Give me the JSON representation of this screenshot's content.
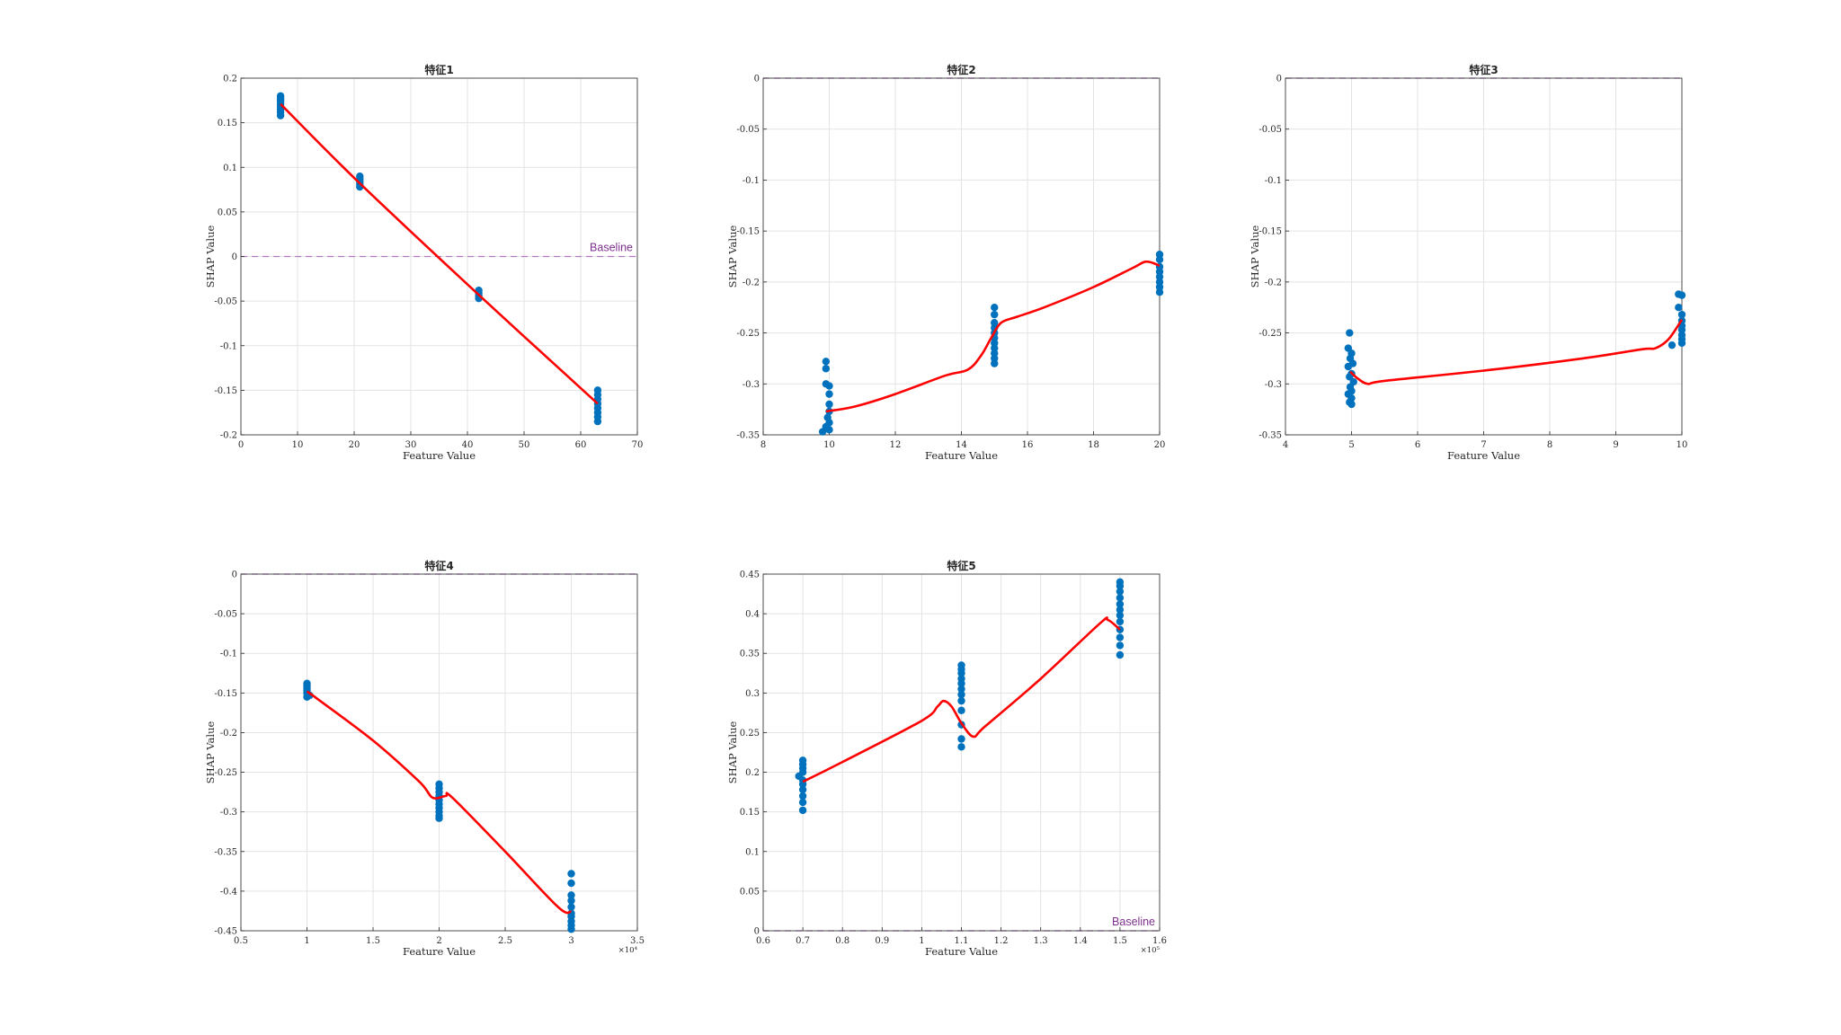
{
  "colors": {
    "points": "#0072bd",
    "trend": "#ff0000",
    "baseline": "#b57bc0",
    "baseline_text": "#7e2f8e",
    "grid": "#e3e3e3",
    "axes": "#262626"
  },
  "chart_data": [
    {
      "type": "scatter",
      "title": "特征1",
      "xlabel": "Feature Value",
      "ylabel": "SHAP Value",
      "xlim": [
        0,
        70
      ],
      "ylim": [
        -0.2,
        0.2
      ],
      "xticks": [
        0,
        10,
        20,
        30,
        40,
        50,
        60,
        70
      ],
      "xtick_labels": [
        "0",
        "10",
        "20",
        "30",
        "40",
        "50",
        "60",
        "70"
      ],
      "yticks": [
        -0.2,
        -0.15,
        -0.1,
        -0.05,
        0,
        0.05,
        0.1,
        0.15,
        0.2
      ],
      "ytick_labels": [
        "-0.2",
        "-0.15",
        "-0.1",
        "-0.05",
        "0",
        "0.05",
        "0.1",
        "0.15",
        "0.2"
      ],
      "exponent": "",
      "grid": true,
      "baseline": {
        "y": 0,
        "label": "Baseline",
        "label_position": "top-right"
      },
      "points": [
        [
          7,
          0.158
        ],
        [
          7,
          0.162
        ],
        [
          7,
          0.165
        ],
        [
          7,
          0.168
        ],
        [
          7,
          0.171
        ],
        [
          7,
          0.174
        ],
        [
          7,
          0.176
        ],
        [
          7,
          0.178
        ],
        [
          7,
          0.18
        ],
        [
          21,
          0.078
        ],
        [
          21,
          0.081
        ],
        [
          21,
          0.084
        ],
        [
          21,
          0.087
        ],
        [
          21,
          0.09
        ],
        [
          42,
          -0.038
        ],
        [
          42,
          -0.041
        ],
        [
          42,
          -0.044
        ],
        [
          42,
          -0.047
        ],
        [
          63,
          -0.15
        ],
        [
          63,
          -0.155
        ],
        [
          63,
          -0.16
        ],
        [
          63,
          -0.165
        ],
        [
          63,
          -0.17
        ],
        [
          63,
          -0.175
        ],
        [
          63,
          -0.18
        ],
        [
          63,
          -0.185
        ]
      ],
      "trend": [
        [
          7,
          0.171
        ],
        [
          21,
          0.082
        ],
        [
          42,
          -0.043
        ],
        [
          63,
          -0.165
        ]
      ]
    },
    {
      "type": "scatter",
      "title": "特征2",
      "xlabel": "Feature Value",
      "ylabel": "SHAP Value",
      "xlim": [
        8,
        20
      ],
      "ylim": [
        -0.35,
        0
      ],
      "xticks": [
        8,
        10,
        12,
        14,
        16,
        18,
        20
      ],
      "xtick_labels": [
        "8",
        "10",
        "12",
        "14",
        "16",
        "18",
        "20"
      ],
      "yticks": [
        -0.35,
        -0.3,
        -0.25,
        -0.2,
        -0.15,
        -0.1,
        -0.05,
        0
      ],
      "ytick_labels": [
        "-0.35",
        "-0.3",
        "-0.25",
        "-0.2",
        "-0.15",
        "-0.1",
        "-0.05",
        "0"
      ],
      "exponent": "",
      "grid": true,
      "baseline": {
        "y": 0,
        "label": "",
        "label_position": ""
      },
      "points": [
        [
          9.9,
          -0.278
        ],
        [
          9.9,
          -0.285
        ],
        [
          9.9,
          -0.3
        ],
        [
          10,
          -0.302
        ],
        [
          10,
          -0.31
        ],
        [
          10,
          -0.32
        ],
        [
          10,
          -0.327
        ],
        [
          9.95,
          -0.333
        ],
        [
          10,
          -0.338
        ],
        [
          9.9,
          -0.342
        ],
        [
          10,
          -0.345
        ],
        [
          9.8,
          -0.347
        ],
        [
          15,
          -0.225
        ],
        [
          15,
          -0.232
        ],
        [
          15,
          -0.24
        ],
        [
          15,
          -0.245
        ],
        [
          15,
          -0.25
        ],
        [
          15,
          -0.255
        ],
        [
          15,
          -0.26
        ],
        [
          15,
          -0.265
        ],
        [
          15,
          -0.27
        ],
        [
          15,
          -0.275
        ],
        [
          15,
          -0.28
        ],
        [
          20,
          -0.173
        ],
        [
          20,
          -0.178
        ],
        [
          20,
          -0.185
        ],
        [
          20,
          -0.19
        ],
        [
          20,
          -0.195
        ],
        [
          20,
          -0.2
        ],
        [
          20,
          -0.205
        ],
        [
          20,
          -0.21
        ]
      ],
      "trend": [
        [
          9.9,
          -0.327
        ],
        [
          10.8,
          -0.322
        ],
        [
          12,
          -0.31
        ],
        [
          13.5,
          -0.292
        ],
        [
          14.2,
          -0.286
        ],
        [
          14.6,
          -0.272
        ],
        [
          14.9,
          -0.255
        ],
        [
          15.2,
          -0.24
        ],
        [
          15.7,
          -0.234
        ],
        [
          16.5,
          -0.225
        ],
        [
          18,
          -0.205
        ],
        [
          19.2,
          -0.186
        ],
        [
          19.6,
          -0.18
        ],
        [
          20,
          -0.184
        ]
      ]
    },
    {
      "type": "scatter",
      "title": "特征3",
      "xlabel": "Feature Value",
      "ylabel": "SHAP Value",
      "xlim": [
        4,
        10
      ],
      "ylim": [
        -0.35,
        0
      ],
      "xticks": [
        4,
        5,
        6,
        7,
        8,
        9,
        10
      ],
      "xtick_labels": [
        "4",
        "5",
        "6",
        "7",
        "8",
        "9",
        "10"
      ],
      "yticks": [
        -0.35,
        -0.3,
        -0.25,
        -0.2,
        -0.15,
        -0.1,
        -0.05,
        0
      ],
      "ytick_labels": [
        "-0.35",
        "-0.3",
        "-0.25",
        "-0.2",
        "-0.15",
        "-0.1",
        "-0.05",
        "0"
      ],
      "exponent": "",
      "grid": true,
      "baseline": {
        "y": 0,
        "label": "",
        "label_position": ""
      },
      "points": [
        [
          4.97,
          -0.25
        ],
        [
          4.95,
          -0.265
        ],
        [
          5,
          -0.27
        ],
        [
          4.98,
          -0.275
        ],
        [
          5.02,
          -0.28
        ],
        [
          4.95,
          -0.283
        ],
        [
          5,
          -0.29
        ],
        [
          4.97,
          -0.293
        ],
        [
          5.03,
          -0.298
        ],
        [
          4.98,
          -0.303
        ],
        [
          5,
          -0.307
        ],
        [
          4.95,
          -0.31
        ],
        [
          5,
          -0.314
        ],
        [
          4.97,
          -0.318
        ],
        [
          5,
          -0.32
        ],
        [
          9.95,
          -0.212
        ],
        [
          10,
          -0.213
        ],
        [
          9.95,
          -0.225
        ],
        [
          10,
          -0.232
        ],
        [
          10,
          -0.238
        ],
        [
          10,
          -0.243
        ],
        [
          10,
          -0.247
        ],
        [
          10,
          -0.252
        ],
        [
          10,
          -0.256
        ],
        [
          10,
          -0.26
        ],
        [
          9.85,
          -0.262
        ]
      ],
      "trend": [
        [
          4.98,
          -0.288
        ],
        [
          5.1,
          -0.295
        ],
        [
          5.25,
          -0.3
        ],
        [
          5.5,
          -0.297
        ],
        [
          7,
          -0.287
        ],
        [
          8.5,
          -0.275
        ],
        [
          9.4,
          -0.266
        ],
        [
          9.6,
          -0.265
        ],
        [
          9.8,
          -0.256
        ],
        [
          10,
          -0.237
        ]
      ]
    },
    {
      "type": "scatter",
      "title": "特征4",
      "xlabel": "Feature Value",
      "ylabel": "SHAP Value",
      "xlim": [
        0.5,
        3.5
      ],
      "ylim": [
        -0.45,
        0
      ],
      "xticks": [
        0.5,
        1,
        1.5,
        2,
        2.5,
        3,
        3.5
      ],
      "xtick_labels": [
        "0.5",
        "1",
        "1.5",
        "2",
        "2.5",
        "3",
        "3.5"
      ],
      "yticks": [
        -0.45,
        -0.4,
        -0.35,
        -0.3,
        -0.25,
        -0.2,
        -0.15,
        -0.1,
        -0.05,
        0
      ],
      "ytick_labels": [
        "-0.45",
        "-0.4",
        "-0.35",
        "-0.3",
        "-0.25",
        "-0.2",
        "-0.15",
        "-0.1",
        "-0.05",
        "0"
      ],
      "exponent": "×10⁴",
      "grid": true,
      "baseline": {
        "y": 0,
        "label": "",
        "label_position": ""
      },
      "points": [
        [
          1,
          -0.138
        ],
        [
          1,
          -0.141
        ],
        [
          1,
          -0.144
        ],
        [
          1,
          -0.147
        ],
        [
          1,
          -0.15
        ],
        [
          1.02,
          -0.153
        ],
        [
          1,
          -0.155
        ],
        [
          2,
          -0.265
        ],
        [
          2,
          -0.27
        ],
        [
          2,
          -0.275
        ],
        [
          2,
          -0.28
        ],
        [
          2,
          -0.285
        ],
        [
          2,
          -0.29
        ],
        [
          2,
          -0.295
        ],
        [
          2,
          -0.3
        ],
        [
          2,
          -0.305
        ],
        [
          2,
          -0.308
        ],
        [
          3,
          -0.378
        ],
        [
          3,
          -0.39
        ],
        [
          3,
          -0.405
        ],
        [
          3,
          -0.412
        ],
        [
          3,
          -0.42
        ],
        [
          3,
          -0.428
        ],
        [
          3,
          -0.432
        ],
        [
          3,
          -0.438
        ],
        [
          3,
          -0.443
        ],
        [
          3,
          -0.448
        ]
      ],
      "trend": [
        [
          1,
          -0.148
        ],
        [
          1.1,
          -0.16
        ],
        [
          1.5,
          -0.21
        ],
        [
          1.85,
          -0.262
        ],
        [
          1.95,
          -0.282
        ],
        [
          2.05,
          -0.28
        ],
        [
          2.1,
          -0.282
        ],
        [
          2.5,
          -0.35
        ],
        [
          2.9,
          -0.42
        ],
        [
          3,
          -0.426
        ]
      ]
    },
    {
      "type": "scatter",
      "title": "特征5",
      "xlabel": "Feature Value",
      "ylabel": "SHAP Value",
      "xlim": [
        0.6,
        1.6
      ],
      "ylim": [
        0,
        0.45
      ],
      "xticks": [
        0.6,
        0.7,
        0.8,
        0.9,
        1,
        1.1,
        1.2,
        1.3,
        1.4,
        1.5,
        1.6
      ],
      "xtick_labels": [
        "0.6",
        "0.7",
        "0.8",
        "0.9",
        "1",
        "1.1",
        "1.2",
        "1.3",
        "1.4",
        "1.5",
        "1.6"
      ],
      "yticks": [
        0,
        0.05,
        0.1,
        0.15,
        0.2,
        0.25,
        0.3,
        0.35,
        0.4,
        0.45
      ],
      "ytick_labels": [
        "0",
        "0.05",
        "0.1",
        "0.15",
        "0.2",
        "0.25",
        "0.3",
        "0.35",
        "0.4",
        "0.45"
      ],
      "exponent": "×10⁵",
      "grid": true,
      "baseline": {
        "y": 0,
        "label": "Baseline",
        "label_position": "bottom-right"
      },
      "points": [
        [
          0.7,
          0.152
        ],
        [
          0.7,
          0.162
        ],
        [
          0.7,
          0.17
        ],
        [
          0.7,
          0.178
        ],
        [
          0.7,
          0.185
        ],
        [
          0.7,
          0.19
        ],
        [
          0.69,
          0.195
        ],
        [
          0.7,
          0.2
        ],
        [
          0.7,
          0.205
        ],
        [
          0.7,
          0.21
        ],
        [
          0.7,
          0.215
        ],
        [
          1.1,
          0.232
        ],
        [
          1.1,
          0.242
        ],
        [
          1.1,
          0.26
        ],
        [
          1.1,
          0.278
        ],
        [
          1.1,
          0.29
        ],
        [
          1.1,
          0.298
        ],
        [
          1.1,
          0.305
        ],
        [
          1.1,
          0.312
        ],
        [
          1.1,
          0.318
        ],
        [
          1.1,
          0.325
        ],
        [
          1.1,
          0.33
        ],
        [
          1.1,
          0.335
        ],
        [
          1.5,
          0.348
        ],
        [
          1.5,
          0.36
        ],
        [
          1.5,
          0.37
        ],
        [
          1.5,
          0.38
        ],
        [
          1.5,
          0.39
        ],
        [
          1.5,
          0.398
        ],
        [
          1.5,
          0.405
        ],
        [
          1.5,
          0.412
        ],
        [
          1.5,
          0.42
        ],
        [
          1.5,
          0.428
        ],
        [
          1.5,
          0.435
        ],
        [
          1.5,
          0.44
        ]
      ],
      "trend": [
        [
          0.7,
          0.188
        ],
        [
          0.8,
          0.213
        ],
        [
          1,
          0.265
        ],
        [
          1.04,
          0.283
        ],
        [
          1.055,
          0.29
        ],
        [
          1.075,
          0.283
        ],
        [
          1.1,
          0.262
        ],
        [
          1.13,
          0.245
        ],
        [
          1.16,
          0.258
        ],
        [
          1.3,
          0.318
        ],
        [
          1.45,
          0.388
        ],
        [
          1.47,
          0.392
        ],
        [
          1.5,
          0.38
        ]
      ]
    }
  ]
}
